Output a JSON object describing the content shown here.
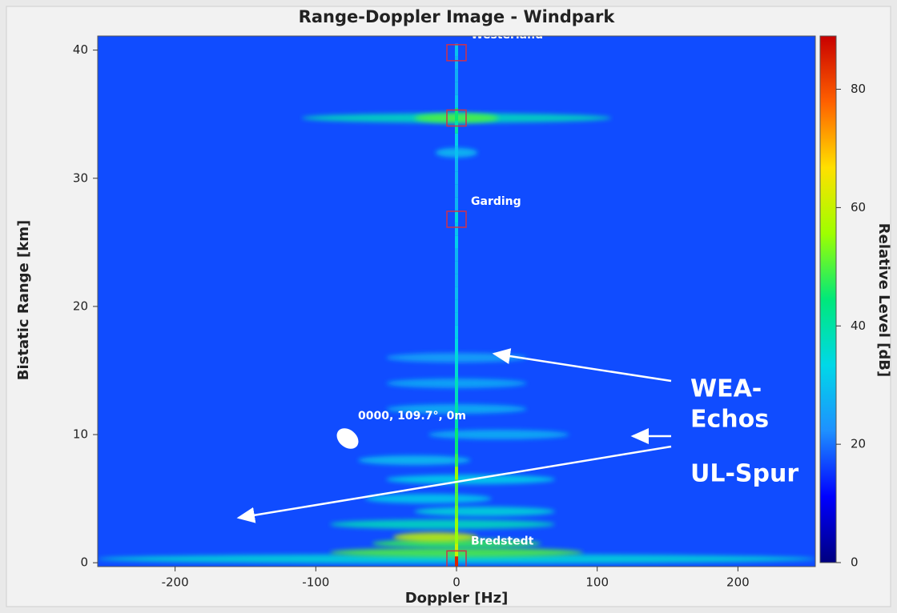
{
  "chart_data": {
    "type": "heatmap",
    "title": "Range-Doppler Image - Windpark",
    "xlabel": "Doppler [Hz]",
    "ylabel": "Bistatic Range [km]",
    "colorbar_label": "Relative Level [dB]",
    "xlim": [
      -255,
      255
    ],
    "xticks": [
      -200,
      -100,
      0,
      100,
      200
    ],
    "ylim": [
      -0.3,
      41.1
    ],
    "yticks": [
      0,
      10,
      20,
      30,
      40
    ],
    "clim": [
      0,
      89
    ],
    "cticks": [
      0,
      20,
      40,
      60,
      80
    ],
    "colormap": [
      "#00007f",
      "#0000ff",
      "#1e90ff",
      "#00d8e8",
      "#00e87a",
      "#9fff00",
      "#ffe000",
      "#ff6000",
      "#c80000"
    ],
    "background_level": 17,
    "ridge": {
      "y": [
        0,
        1,
        2,
        3,
        4,
        5,
        6,
        7,
        8,
        9,
        10,
        11,
        12,
        13,
        14,
        15,
        16,
        17,
        18,
        19,
        20,
        21,
        22,
        23,
        24,
        25,
        26,
        27,
        28,
        29,
        30,
        31,
        32,
        33,
        34,
        35,
        36,
        37,
        38,
        39,
        40
      ],
      "values": [
        85,
        60,
        55,
        55,
        52,
        50,
        50,
        55,
        48,
        45,
        45,
        40,
        40,
        38,
        38,
        36,
        35,
        34,
        32,
        30,
        30,
        29,
        28,
        28,
        28,
        32,
        30,
        35,
        28,
        27,
        28,
        28,
        30,
        32,
        40,
        45,
        30,
        27,
        27,
        28,
        30
      ]
    },
    "echoes": {
      "x": [
        0,
        0,
        0,
        0,
        0,
        -10,
        20,
        -20,
        10,
        -30,
        30,
        0,
        0,
        0,
        0,
        -15
      ],
      "y": [
        34.7,
        34.7,
        0.3,
        0.8,
        1.5,
        3,
        4,
        5,
        6.5,
        8,
        10,
        12,
        14,
        16,
        32,
        2
      ],
      "spread": [
        110,
        30,
        255,
        90,
        60,
        80,
        50,
        45,
        60,
        40,
        50,
        50,
        50,
        50,
        15,
        30
      ],
      "values": [
        38,
        50,
        35,
        50,
        48,
        38,
        35,
        32,
        33,
        30,
        28,
        28,
        27,
        26,
        30,
        60
      ]
    },
    "targets": {
      "x": [
        0,
        0,
        0,
        0
      ],
      "y": [
        39.8,
        34.7,
        26.8,
        0.3
      ]
    },
    "target_labels": [
      "Westerland",
      null,
      "Garding",
      "Bredstedt"
    ],
    "cursor_label": "0000, 109.7°, 0m",
    "annotations": [
      "WEA-",
      "Echos",
      "UL-Spur"
    ]
  }
}
